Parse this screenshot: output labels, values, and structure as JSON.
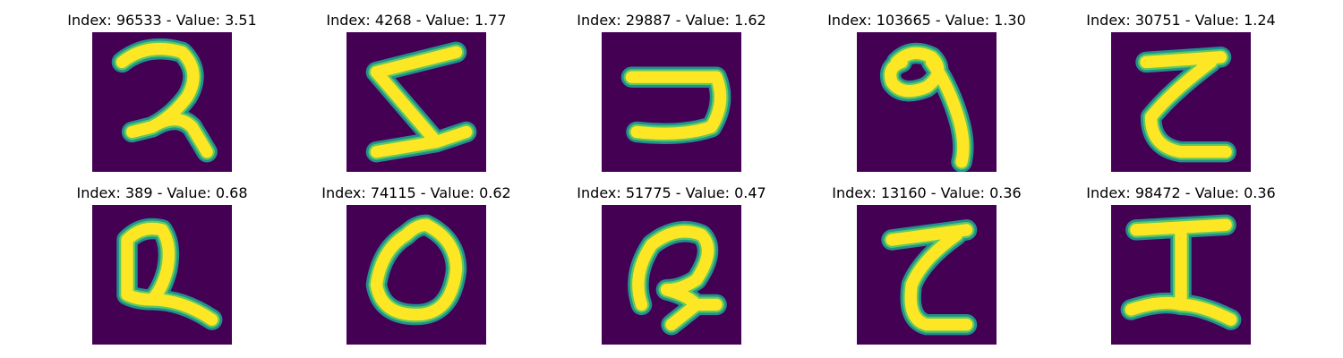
{
  "colors": {
    "background": "#440154",
    "stroke_outer": "#21918c",
    "stroke_mid": "#5ec962",
    "stroke_core": "#fde725"
  },
  "panels": [
    {
      "title": "Index: 96533 - Value: 3.51",
      "glyph": "Devanagari digit two (२)"
    },
    {
      "title": "Index: 4268 - Value: 1.77",
      "glyph": "zigzag S-like stroke"
    },
    {
      "title": "Index: 29887 - Value: 1.62",
      "glyph": "hook-like stroke"
    },
    {
      "title": "Index: 103665 - Value: 1.30",
      "glyph": "Devanagari digit nine (९)"
    },
    {
      "title": "Index: 30751 - Value: 1.24",
      "glyph": "Z-like stroke"
    },
    {
      "title": "Index: 389 - Value: 0.68",
      "glyph": "loop with tail"
    },
    {
      "title": "Index: 74115 - Value: 0.62",
      "glyph": "Devanagari digit zero (०)"
    },
    {
      "title": "Index: 51775 - Value: 0.47",
      "glyph": "R-like stroke"
    },
    {
      "title": "Index: 13160 - Value: 0.36",
      "glyph": "Z-like stroke"
    },
    {
      "title": "Index: 98472 - Value: 0.36",
      "glyph": "I-like stroke"
    }
  ]
}
